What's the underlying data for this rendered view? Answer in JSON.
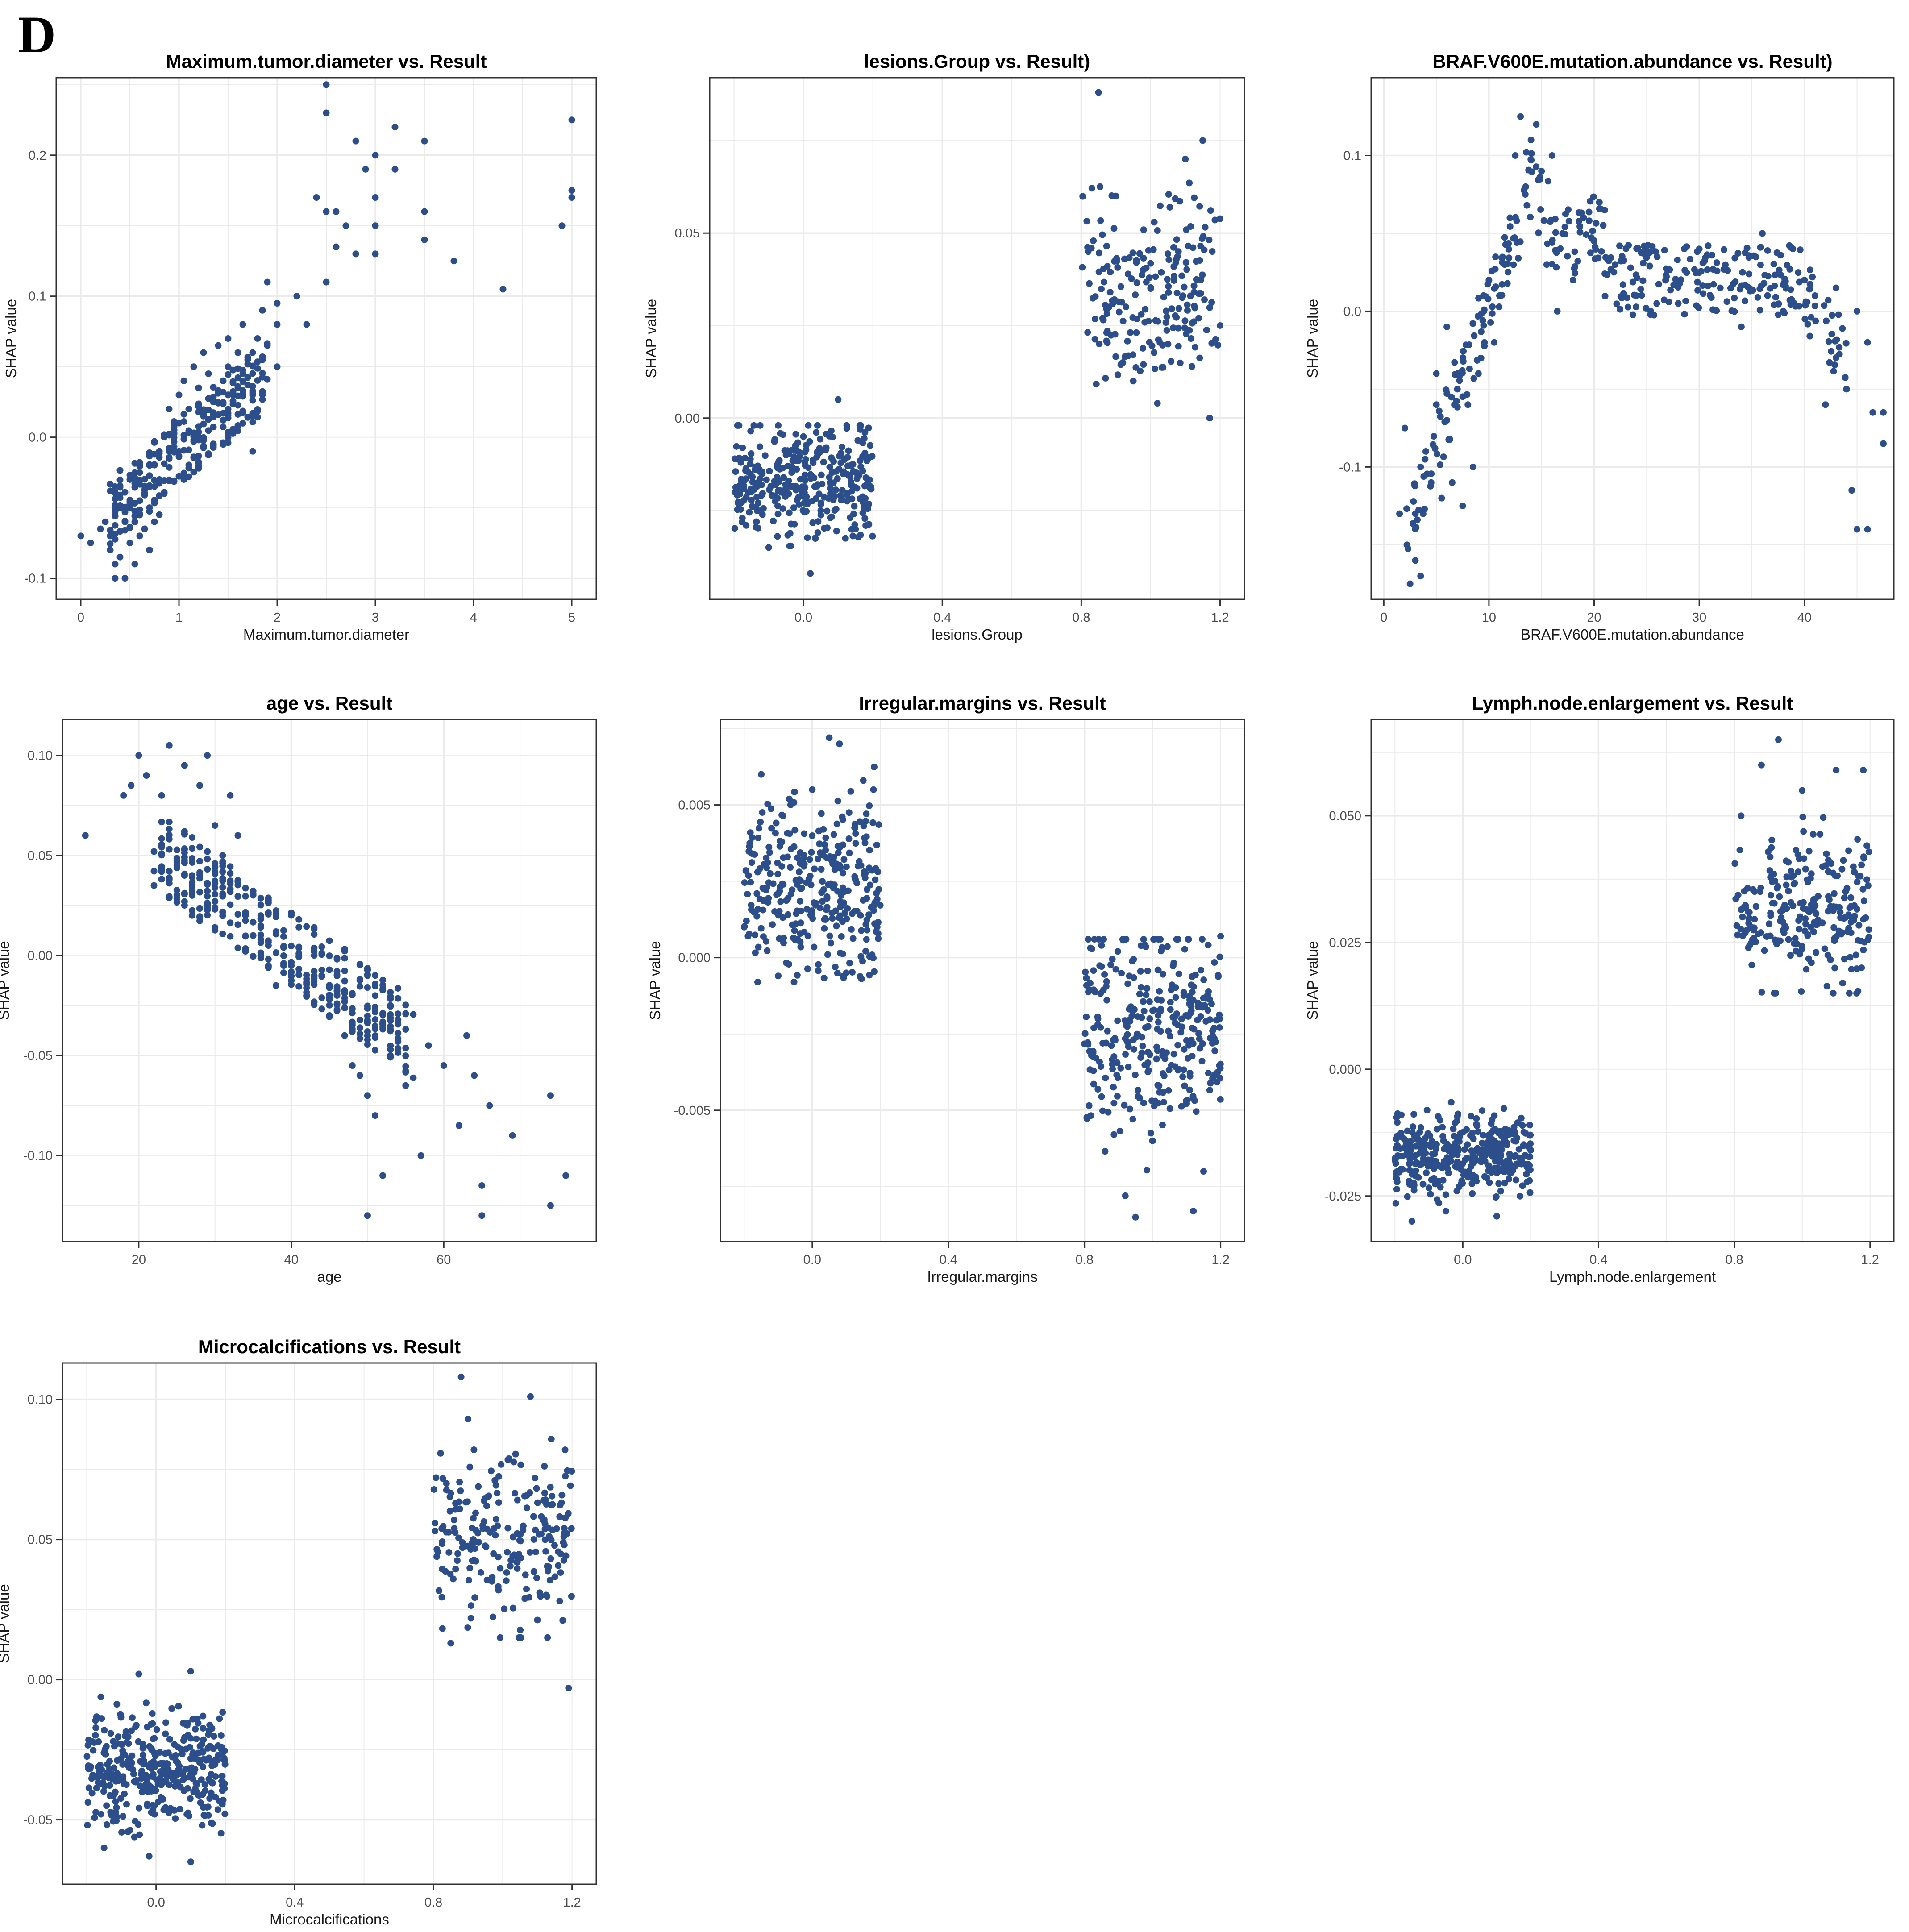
{
  "panel_label": "D",
  "colors": {
    "point": "#2c4f8c",
    "grid": "#ebebeb",
    "axis": "#333333",
    "text": "#1a1a1a"
  },
  "chart_data": [
    {
      "type": "scatter",
      "title": "Maximum.tumor.diameter vs. Result",
      "xlabel": "Maximum.tumor.diameter",
      "ylabel": "SHAP value",
      "xlim": [
        -0.25,
        5.25
      ],
      "ylim": [
        -0.115,
        0.255
      ],
      "xticks": [
        0,
        1,
        2,
        3,
        4,
        5
      ],
      "xtick_labels": [
        "0",
        "1",
        "2",
        "3",
        "4",
        "5"
      ],
      "yticks": [
        -0.1,
        0.0,
        0.1,
        0.2
      ],
      "ytick_labels": [
        "-0.1",
        "0.0",
        "0.1",
        "0.2"
      ],
      "points": [
        [
          0.0,
          -0.07
        ],
        [
          0.1,
          -0.075
        ],
        [
          0.2,
          -0.065
        ],
        [
          0.25,
          -0.06
        ],
        [
          0.3,
          -0.08
        ],
        [
          0.3,
          -0.07
        ],
        [
          0.35,
          -0.09
        ],
        [
          0.35,
          -0.1
        ],
        [
          0.4,
          -0.05
        ],
        [
          0.4,
          -0.085
        ],
        [
          0.45,
          -0.1
        ],
        [
          0.45,
          -0.06
        ],
        [
          0.5,
          -0.03
        ],
        [
          0.5,
          -0.05
        ],
        [
          0.5,
          -0.075
        ],
        [
          0.55,
          -0.09
        ],
        [
          0.55,
          -0.06
        ],
        [
          0.6,
          -0.025
        ],
        [
          0.6,
          -0.045
        ],
        [
          0.6,
          -0.07
        ],
        [
          0.65,
          -0.04
        ],
        [
          0.65,
          -0.065
        ],
        [
          0.7,
          -0.02
        ],
        [
          0.7,
          -0.05
        ],
        [
          0.7,
          -0.08
        ],
        [
          0.75,
          -0.035
        ],
        [
          0.75,
          -0.06
        ],
        [
          0.8,
          -0.01
        ],
        [
          0.8,
          -0.03
        ],
        [
          0.8,
          -0.055
        ],
        [
          0.85,
          0.0
        ],
        [
          0.85,
          -0.04
        ],
        [
          0.9,
          0.02
        ],
        [
          0.9,
          -0.01
        ],
        [
          0.95,
          0.005
        ],
        [
          1.0,
          0.03
        ],
        [
          1.0,
          0.01
        ],
        [
          1.0,
          -0.01
        ],
        [
          1.05,
          0.04
        ],
        [
          1.05,
          -0.03
        ],
        [
          1.1,
          0.02
        ],
        [
          1.15,
          0.05
        ],
        [
          1.2,
          0.035
        ],
        [
          1.25,
          0.06
        ],
        [
          1.25,
          0.015
        ],
        [
          1.3,
          0.045
        ],
        [
          1.35,
          0.025
        ],
        [
          1.4,
          0.065
        ],
        [
          1.45,
          0.04
        ],
        [
          1.5,
          0.07
        ],
        [
          1.5,
          0.05
        ],
        [
          1.55,
          0.03
        ],
        [
          1.6,
          0.06
        ],
        [
          1.65,
          0.08
        ],
        [
          1.7,
          0.055
        ],
        [
          1.75,
          -0.01
        ],
        [
          1.8,
          0.07
        ],
        [
          1.85,
          0.09
        ],
        [
          1.9,
          0.11
        ],
        [
          2.0,
          0.05
        ],
        [
          2.0,
          0.095
        ],
        [
          2.0,
          0.08
        ],
        [
          2.2,
          0.1
        ],
        [
          2.3,
          0.08
        ],
        [
          2.4,
          0.17
        ],
        [
          2.5,
          0.25
        ],
        [
          2.5,
          0.23
        ],
        [
          2.5,
          0.16
        ],
        [
          2.5,
          0.11
        ],
        [
          2.6,
          0.135
        ],
        [
          2.6,
          0.16
        ],
        [
          2.7,
          0.15
        ],
        [
          2.8,
          0.21
        ],
        [
          2.8,
          0.13
        ],
        [
          2.9,
          0.19
        ],
        [
          3.0,
          0.2
        ],
        [
          3.0,
          0.17
        ],
        [
          3.0,
          0.15
        ],
        [
          3.0,
          0.13
        ],
        [
          3.2,
          0.22
        ],
        [
          3.2,
          0.19
        ],
        [
          3.5,
          0.21
        ],
        [
          3.5,
          0.16
        ],
        [
          3.5,
          0.14
        ],
        [
          3.8,
          0.125
        ],
        [
          4.3,
          0.105
        ],
        [
          4.9,
          0.15
        ],
        [
          5.0,
          0.225
        ],
        [
          5.0,
          0.175
        ],
        [
          5.0,
          0.17
        ]
      ]
    },
    {
      "type": "scatter",
      "title": "lesions.Group vs. Result)",
      "xlabel": "lesions.Group",
      "ylabel": "SHAP value",
      "xlim": [
        -0.27,
        1.27
      ],
      "ylim": [
        -0.049,
        0.092
      ],
      "xticks": [
        0.0,
        0.4,
        0.8,
        1.2
      ],
      "xtick_labels": [
        "0.0",
        "0.4",
        "0.8",
        "1.2"
      ],
      "yticks": [
        0.0,
        0.05
      ],
      "ytick_labels": [
        "0.00",
        "0.05"
      ],
      "points": [
        [
          -0.15,
          -0.02
        ],
        [
          -0.05,
          -0.01
        ],
        [
          0.05,
          -0.025
        ],
        [
          0.12,
          -0.015
        ],
        [
          -0.1,
          -0.035
        ],
        [
          0.0,
          -0.005
        ],
        [
          0.1,
          0.005
        ],
        [
          0.15,
          -0.03
        ],
        [
          -0.18,
          -0.012
        ],
        [
          0.02,
          -0.042
        ],
        [
          0.85,
          0.088
        ],
        [
          0.82,
          0.045
        ],
        [
          0.9,
          0.06
        ],
        [
          1.0,
          0.035
        ],
        [
          1.05,
          0.02
        ],
        [
          1.1,
          0.07
        ],
        [
          1.15,
          0.075
        ],
        [
          0.95,
          0.01
        ],
        [
          1.2,
          0.025
        ],
        [
          1.17,
          0.0
        ],
        [
          0.88,
          0.03
        ],
        [
          1.08,
          0.045
        ],
        [
          0.92,
          0.015
        ]
      ],
      "jitter": [
        {
          "x_center": 0.0,
          "x_half_width": 0.2,
          "y_min": -0.04,
          "y_max": -0.002,
          "y_center": -0.017,
          "n": 330
        },
        {
          "x_center": 1.0,
          "x_half_width": 0.2,
          "y_min": 0.004,
          "y_max": 0.068,
          "y_center": 0.033,
          "n": 200
        }
      ]
    },
    {
      "type": "scatter",
      "title": "BRAF.V600E.mutation.abundance vs. Result)",
      "xlabel": "BRAF.V600E.mutation.abundance",
      "ylabel": "SHAP value",
      "xlim": [
        -1.2,
        48.5
      ],
      "ylim": [
        -0.185,
        0.15
      ],
      "xticks": [
        0,
        10,
        20,
        30,
        40
      ],
      "xtick_labels": [
        "0",
        "10",
        "20",
        "30",
        "40"
      ],
      "yticks": [
        -0.1,
        0.0,
        0.1
      ],
      "ytick_labels": [
        "-0.1",
        "0.0",
        "0.1"
      ],
      "points": [
        [
          1.5,
          -0.13
        ],
        [
          2.0,
          -0.075
        ],
        [
          2.2,
          -0.15
        ],
        [
          2.5,
          -0.175
        ],
        [
          3.0,
          -0.16
        ],
        [
          3.0,
          -0.13
        ],
        [
          3.5,
          -0.17
        ],
        [
          3.5,
          -0.1
        ],
        [
          4.0,
          -0.09
        ],
        [
          4.5,
          -0.11
        ],
        [
          5.0,
          -0.06
        ],
        [
          5.0,
          -0.04
        ],
        [
          5.5,
          -0.12
        ],
        [
          6.0,
          -0.01
        ],
        [
          6.0,
          -0.07
        ],
        [
          6.5,
          -0.11
        ],
        [
          7.0,
          -0.05
        ],
        [
          7.5,
          -0.125
        ],
        [
          8.0,
          -0.06
        ],
        [
          8.5,
          -0.1
        ],
        [
          9.0,
          -0.04
        ],
        [
          9.5,
          0.0
        ],
        [
          10.0,
          0.02
        ],
        [
          10.5,
          -0.02
        ],
        [
          11.0,
          0.01
        ],
        [
          11.5,
          0.03
        ],
        [
          12.0,
          0.06
        ],
        [
          12.5,
          0.1
        ],
        [
          13.0,
          0.125
        ],
        [
          13.5,
          0.08
        ],
        [
          14.0,
          0.11
        ],
        [
          14.5,
          0.12
        ],
        [
          15.0,
          0.09
        ],
        [
          15.5,
          0.03
        ],
        [
          16.0,
          0.1
        ],
        [
          16.5,
          0.0
        ],
        [
          17.0,
          0.05
        ],
        [
          18.0,
          0.02
        ],
        [
          19.0,
          0.06
        ],
        [
          20.0,
          0.045
        ],
        [
          20.5,
          0.07
        ],
        [
          21.0,
          0.065
        ],
        [
          22.0,
          0.03
        ],
        [
          24.0,
          0.01
        ],
        [
          26.0,
          0.035
        ],
        [
          28.0,
          0.005
        ],
        [
          30.0,
          0.04
        ],
        [
          32.0,
          0.015
        ],
        [
          34.0,
          -0.01
        ],
        [
          36.0,
          0.05
        ],
        [
          38.0,
          0.0
        ],
        [
          40.0,
          0.02
        ],
        [
          41.0,
          0.01
        ],
        [
          42.0,
          -0.06
        ],
        [
          43.0,
          0.015
        ],
        [
          44.0,
          -0.05
        ],
        [
          44.5,
          -0.115
        ],
        [
          45.0,
          -0.14
        ],
        [
          45.0,
          0.0
        ],
        [
          46.0,
          -0.14
        ],
        [
          46.0,
          -0.02
        ],
        [
          46.5,
          -0.065
        ],
        [
          47.5,
          -0.085
        ],
        [
          47.5,
          -0.065
        ]
      ]
    },
    {
      "type": "scatter",
      "title": "age vs. Result",
      "xlabel": "age",
      "ylabel": "SHAP value",
      "xlim": [
        10,
        80
      ],
      "ylim": [
        -0.143,
        0.118
      ],
      "xticks": [
        20,
        40,
        60
      ],
      "xtick_labels": [
        "20",
        "40",
        "60"
      ],
      "yticks": [
        -0.1,
        -0.05,
        0.0,
        0.05,
        0.1
      ],
      "ytick_labels": [
        "-0.10",
        "-0.05",
        "0.00",
        "0.05",
        "0.10"
      ],
      "points": [
        [
          13,
          0.06
        ],
        [
          18,
          0.08
        ],
        [
          19,
          0.085
        ],
        [
          20,
          0.1
        ],
        [
          21,
          0.09
        ],
        [
          22,
          0.035
        ],
        [
          23,
          0.08
        ],
        [
          24,
          0.105
        ],
        [
          25,
          0.045
        ],
        [
          26,
          0.095
        ],
        [
          27,
          0.03
        ],
        [
          28,
          0.085
        ],
        [
          29,
          0.1
        ],
        [
          30,
          0.065
        ],
        [
          31,
          0.05
        ],
        [
          32,
          0.08
        ],
        [
          33,
          0.06
        ],
        [
          34,
          0.02
        ],
        [
          35,
          0.01
        ],
        [
          36,
          0.0
        ],
        [
          37,
          0.005
        ],
        [
          38,
          -0.015
        ],
        [
          40,
          -0.005
        ],
        [
          42,
          -0.02
        ],
        [
          44,
          -0.01
        ],
        [
          45,
          -0.03
        ],
        [
          47,
          -0.04
        ],
        [
          48,
          -0.055
        ],
        [
          49,
          -0.06
        ],
        [
          50,
          -0.07
        ],
        [
          50,
          -0.13
        ],
        [
          51,
          -0.08
        ],
        [
          52,
          -0.11
        ],
        [
          53,
          -0.05
        ],
        [
          55,
          -0.065
        ],
        [
          57,
          -0.1
        ],
        [
          58,
          -0.045
        ],
        [
          60,
          -0.055
        ],
        [
          62,
          -0.085
        ],
        [
          63,
          -0.04
        ],
        [
          64,
          -0.06
        ],
        [
          65,
          -0.13
        ],
        [
          65,
          -0.115
        ],
        [
          66,
          -0.075
        ],
        [
          69,
          -0.09
        ],
        [
          74,
          -0.07
        ],
        [
          74,
          -0.125
        ],
        [
          76,
          -0.11
        ]
      ]
    },
    {
      "type": "scatter",
      "title": "Irregular.margins vs. Result",
      "xlabel": "Irregular.margins",
      "ylabel": "SHAP value",
      "xlim": [
        -0.27,
        1.27
      ],
      "ylim": [
        -0.0093,
        0.0078
      ],
      "xticks": [
        0.0,
        0.4,
        0.8,
        1.2
      ],
      "xtick_labels": [
        "0.0",
        "0.4",
        "0.8",
        "1.2"
      ],
      "yticks": [
        -0.005,
        0.0,
        0.005
      ],
      "ytick_labels": [
        "-0.005",
        "0.000",
        "0.005"
      ],
      "points": [
        [
          -0.15,
          0.006
        ],
        [
          0.05,
          0.0072
        ],
        [
          0.08,
          0.007
        ],
        [
          -0.1,
          -0.0006
        ],
        [
          0.0,
          0.0055
        ],
        [
          0.15,
          0.0058
        ],
        [
          0.18,
          0.0055
        ],
        [
          0.1,
          -0.0005
        ],
        [
          -0.2,
          0.001
        ],
        [
          0.95,
          -0.0085
        ],
        [
          0.92,
          -0.0078
        ],
        [
          1.12,
          -0.0083
        ],
        [
          1.2,
          0.0007
        ],
        [
          0.85,
          0.0004
        ],
        [
          1.0,
          -0.006
        ],
        [
          1.15,
          -0.007
        ]
      ],
      "jitter": [
        {
          "x_center": 0.0,
          "x_half_width": 0.2,
          "y_min": -0.0008,
          "y_max": 0.0065,
          "y_center": 0.0022,
          "n": 320
        },
        {
          "x_center": 1.0,
          "x_half_width": 0.2,
          "y_min": -0.0078,
          "y_max": 0.0006,
          "y_center": -0.0025,
          "n": 320
        }
      ]
    },
    {
      "type": "scatter",
      "title": "Lymph.node.enlargement vs. Result",
      "xlabel": "Lymph.node.enlargement",
      "ylabel": "SHAP value",
      "xlim": [
        -0.27,
        1.27
      ],
      "ylim": [
        -0.034,
        0.069
      ],
      "xticks": [
        0.0,
        0.4,
        0.8,
        1.2
      ],
      "xtick_labels": [
        "0.0",
        "0.4",
        "0.8",
        "1.2"
      ],
      "yticks": [
        -0.025,
        0.0,
        0.025,
        0.05
      ],
      "ytick_labels": [
        "-0.025",
        "0.000",
        "0.025",
        "0.050"
      ],
      "points": [
        [
          0.93,
          0.065
        ],
        [
          0.88,
          0.06
        ],
        [
          1.18,
          0.059
        ],
        [
          1.1,
          0.059
        ],
        [
          0.82,
          0.05
        ],
        [
          1.0,
          0.055
        ],
        [
          -0.15,
          -0.03
        ],
        [
          0.1,
          -0.029
        ],
        [
          -0.05,
          -0.028
        ]
      ],
      "jitter": [
        {
          "x_center": 0.0,
          "x_half_width": 0.2,
          "y_min": -0.028,
          "y_max": -0.006,
          "y_center": -0.017,
          "n": 380
        },
        {
          "x_center": 1.0,
          "x_half_width": 0.2,
          "y_min": 0.015,
          "y_max": 0.055,
          "y_center": 0.032,
          "n": 240
        }
      ]
    },
    {
      "type": "scatter",
      "title": "Microcalcifications vs. Result",
      "xlabel": "Microcalcifications",
      "ylabel": "SHAP value",
      "xlim": [
        -0.27,
        1.27
      ],
      "ylim": [
        -0.073,
        0.113
      ],
      "xticks": [
        0.0,
        0.4,
        0.8,
        1.2
      ],
      "xtick_labels": [
        "0.0",
        "0.4",
        "0.8",
        "1.2"
      ],
      "yticks": [
        -0.05,
        0.0,
        0.05,
        0.1
      ],
      "ytick_labels": [
        "-0.05",
        "0.00",
        "0.05",
        "0.10"
      ],
      "points": [
        [
          0.88,
          0.108
        ],
        [
          1.08,
          0.101
        ],
        [
          0.9,
          0.093
        ],
        [
          1.18,
          0.082
        ],
        [
          0.85,
          0.013
        ],
        [
          1.19,
          -0.003
        ],
        [
          0.1,
          0.003
        ],
        [
          -0.05,
          0.002
        ],
        [
          0.1,
          -0.065
        ],
        [
          -0.02,
          -0.063
        ],
        [
          -0.15,
          -0.06
        ]
      ],
      "jitter": [
        {
          "x_center": 0.0,
          "x_half_width": 0.2,
          "y_min": -0.062,
          "y_max": -0.002,
          "y_center": -0.032,
          "n": 380
        },
        {
          "x_center": 1.0,
          "x_half_width": 0.2,
          "y_min": 0.015,
          "y_max": 0.095,
          "y_center": 0.05,
          "n": 220
        }
      ]
    }
  ]
}
